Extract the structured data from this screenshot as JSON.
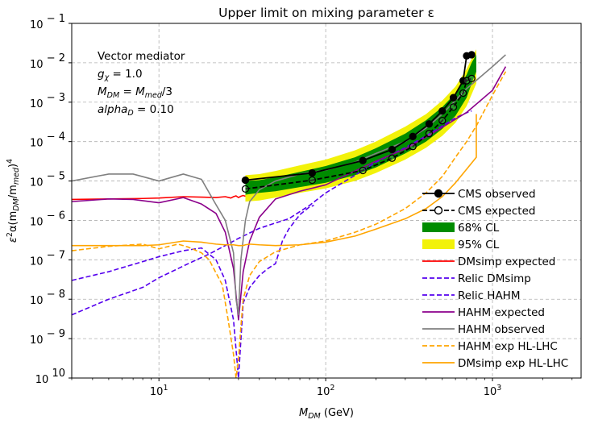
{
  "chart_data": {
    "type": "line",
    "title": "Upper limit on mixing parameter ε",
    "xlabel_parts": [
      "M",
      "DM",
      " (GeV)"
    ],
    "ylabel_parts": [
      "ε",
      "2",
      "α(m",
      "DM",
      "/m",
      "med",
      ")",
      "4"
    ],
    "xscale": "log",
    "yscale": "log",
    "xlim": [
      3,
      3400
    ],
    "ylim": [
      1e-10,
      0.1
    ],
    "grid": true,
    "legend_placement": "lower-right",
    "x_ticks": [
      {
        "value": 10,
        "base": "10",
        "exp": "1"
      },
      {
        "value": 100,
        "base": "10",
        "exp": "2"
      },
      {
        "value": 1000,
        "base": "10",
        "exp": "3"
      }
    ],
    "y_ticks": [
      {
        "value": 0.1,
        "base": "10",
        "exp": "− 1"
      },
      {
        "value": 0.01,
        "base": "10",
        "exp": "− 2"
      },
      {
        "value": 0.001,
        "base": "10",
        "exp": "− 3"
      },
      {
        "value": 0.0001,
        "base": "10",
        "exp": "− 4"
      },
      {
        "value": 1e-05,
        "base": "10",
        "exp": "− 5"
      },
      {
        "value": 1e-06,
        "base": "10",
        "exp": "− 6"
      },
      {
        "value": 1e-07,
        "base": "10",
        "exp": "− 7"
      },
      {
        "value": 1e-08,
        "base": "10",
        "exp": "− 8"
      },
      {
        "value": 1e-09,
        "base": "10",
        "exp": "− 9"
      },
      {
        "value": 1e-10,
        "base": "10",
        "exp": "10"
      }
    ],
    "annotation_lines": [
      [
        {
          "t": "Vector mediator",
          "s": "n"
        }
      ],
      [
        {
          "t": "g",
          "s": "i"
        },
        {
          "t": "χ",
          "s": "sub"
        },
        {
          "t": " = 1.0",
          "s": "n"
        }
      ],
      [
        {
          "t": "M",
          "s": "i"
        },
        {
          "t": "DM",
          "s": "sub"
        },
        {
          "t": " = ",
          "s": "n"
        },
        {
          "t": "M",
          "s": "i"
        },
        {
          "t": "med",
          "s": "sub"
        },
        {
          "t": "/3",
          "s": "n"
        }
      ],
      [
        {
          "t": "alpha",
          "s": "i"
        },
        {
          "t": "D",
          "s": "sub"
        },
        {
          "t": " = 0.10",
          "s": "n"
        }
      ]
    ],
    "bands": [
      {
        "name": "95% CL",
        "color": "#f2f20a",
        "x": [
          33,
          40,
          50,
          70,
          100,
          150,
          200,
          300,
          400,
          500,
          600,
          700,
          800
        ],
        "lower": [
          3e-06,
          3.2e-06,
          3.8e-06,
          5e-06,
          6.5e-06,
          1e-05,
          1.6e-05,
          3.5e-05,
          7e-05,
          0.00014,
          0.0003,
          0.0008,
          0.003
        ],
        "upper": [
          1.4e-05,
          1.5e-05,
          1.8e-05,
          2.5e-05,
          3.5e-05,
          6e-05,
          0.0001,
          0.00024,
          0.0005,
          0.0011,
          0.0025,
          0.007,
          0.022
        ]
      },
      {
        "name": "68% CL",
        "color": "#008c00",
        "x": [
          33,
          40,
          50,
          70,
          100,
          150,
          200,
          300,
          400,
          500,
          600,
          700,
          750,
          800
        ],
        "lower": [
          4.5e-06,
          5e-06,
          5.5e-06,
          7e-06,
          9e-06,
          1.4e-05,
          2.2e-05,
          5e-05,
          0.0001,
          0.00021,
          0.00045,
          0.0013,
          0.003,
          0.006
        ],
        "upper": [
          1e-05,
          1.05e-05,
          1.25e-05,
          1.7e-05,
          2.4e-05,
          4e-05,
          6.8e-05,
          0.00016,
          0.00035,
          0.00075,
          0.0017,
          0.005,
          0.01,
          0.016
        ]
      }
    ],
    "series": [
      {
        "name": "CMS observed",
        "color": "#000000",
        "dash": "solid",
        "marker": "filled",
        "x": [
          33,
          83,
          167,
          250,
          333,
          417,
          500,
          583,
          667,
          700,
          750
        ],
        "y": [
          1.05e-05,
          1.6e-05,
          3.3e-05,
          6.3e-05,
          0.000135,
          0.00028,
          0.0006,
          0.0013,
          0.0035,
          0.015,
          0.016
        ]
      },
      {
        "name": "CMS expected",
        "color": "#000000",
        "dash": "dashed",
        "marker": "open",
        "x": [
          33,
          83,
          167,
          250,
          333,
          417,
          500,
          583,
          667,
          700,
          750
        ],
        "y": [
          6.3e-06,
          1.05e-05,
          1.85e-05,
          3.8e-05,
          7.5e-05,
          0.00016,
          0.00034,
          0.00075,
          0.0017,
          0.0035,
          0.004
        ]
      },
      {
        "name": "DMsimp expected",
        "color": "#ff0000",
        "dash": "solid",
        "marker": "none",
        "x": [
          3,
          5,
          8,
          10,
          14,
          18,
          22,
          25,
          27,
          28,
          29,
          30,
          31,
          32,
          33
        ],
        "y": [
          3.4e-06,
          3.5e-06,
          3.6e-06,
          3.7e-06,
          4e-06,
          3.9e-06,
          3.8e-06,
          4e-06,
          3.7e-06,
          4e-06,
          4.2e-06,
          3.8e-06,
          4.1e-06,
          4.3e-06,
          4.1e-06
        ]
      },
      {
        "name": "Relic DMsimp",
        "color": "#5500ee",
        "dash": "dashed",
        "marker": "none",
        "x": [
          3,
          5,
          8,
          10,
          14,
          18,
          22,
          25,
          28,
          30,
          32,
          35,
          40,
          45,
          50,
          55,
          60,
          70,
          80,
          85
        ],
        "y": [
          3e-08,
          5e-08,
          9e-08,
          1.2e-07,
          1.7e-07,
          2e-07,
          1e-07,
          3e-08,
          3e-09,
          1e-10,
          8e-09,
          2e-08,
          4e-08,
          6e-08,
          8e-08,
          3e-07,
          6e-07,
          1.4e-06,
          2.2e-06,
          2.4e-06
        ]
      },
      {
        "name": "Relic HAHM",
        "color": "#5500ee",
        "dash": "dashed",
        "marker": "none",
        "x": [
          3,
          5,
          8,
          10,
          15,
          20,
          25,
          30,
          40,
          50,
          60,
          80,
          100,
          150,
          200,
          300,
          400,
          500,
          600,
          700,
          750
        ],
        "y": [
          4e-09,
          1e-08,
          2e-08,
          3.5e-08,
          8e-08,
          1.4e-07,
          2.3e-07,
          3.5e-07,
          6.3e-07,
          8.6e-07,
          1.1e-06,
          2.4e-06,
          5e-06,
          1.4e-05,
          3e-05,
          7e-05,
          0.00014,
          0.00025,
          0.0004,
          0.00054,
          0.0006
        ]
      },
      {
        "name": "HAHM expected",
        "color": "#8b008b",
        "dash": "solid",
        "marker": "none",
        "x": [
          3,
          5,
          7,
          10,
          14,
          18,
          22,
          25,
          28,
          30,
          32,
          35,
          40,
          50,
          70,
          100,
          150,
          200,
          300,
          400,
          500,
          700,
          1000,
          1200
        ],
        "y": [
          3e-06,
          3.5e-06,
          3.4e-06,
          2.8e-06,
          3.8e-06,
          2.6e-06,
          1.5e-06,
          5e-07,
          6e-08,
          3e-09,
          5e-08,
          3e-07,
          1.2e-06,
          3.5e-06,
          5.5e-06,
          8e-06,
          1.8e-05,
          3.2e-05,
          6.5e-05,
          0.00013,
          0.00023,
          0.00055,
          0.002,
          0.008
        ]
      },
      {
        "name": "HAHM observed",
        "color": "#808080",
        "dash": "solid",
        "marker": "none",
        "x": [
          3,
          5,
          7,
          10,
          14,
          18,
          22,
          25,
          28,
          29,
          30,
          31,
          33,
          35,
          40,
          50,
          70,
          100,
          150,
          200,
          300,
          400,
          500,
          700,
          1000,
          1200
        ],
        "y": [
          1e-05,
          1.5e-05,
          1.5e-05,
          1e-05,
          1.5e-05,
          1.1e-05,
          2.5e-06,
          1e-06,
          1.5e-07,
          1e-08,
          4e-09,
          1e-07,
          1e-06,
          3e-06,
          6e-06,
          1e-05,
          1.5e-05,
          1.9e-05,
          3e-05,
          5e-05,
          0.0001,
          0.00022,
          0.0005,
          0.0022,
          0.008,
          0.016
        ]
      },
      {
        "name": "HAHM exp HL-LHC",
        "color": "#ffa500",
        "dash": "dashed",
        "marker": "none",
        "x": [
          3,
          5,
          8,
          10,
          13,
          15,
          18,
          20,
          24,
          26,
          28,
          29,
          30,
          31,
          32,
          35,
          40,
          50,
          70,
          100,
          150,
          200,
          300,
          400,
          500,
          600,
          700,
          800,
          1000,
          1200
        ],
        "y": [
          1.7e-07,
          2.2e-07,
          2.5e-07,
          1.9e-07,
          2.5e-07,
          2.1e-07,
          1.5e-07,
          1e-07,
          2.3e-08,
          3e-09,
          4e-10,
          1e-10,
          3e-10,
          2e-09,
          1e-08,
          4e-08,
          9e-08,
          1.6e-07,
          2.4e-07,
          3e-07,
          5e-07,
          8e-07,
          2e-06,
          5e-06,
          1.3e-05,
          4e-05,
          0.0001,
          0.00025,
          0.0015,
          0.006
        ]
      },
      {
        "name": "DMsimp exp HL-LHC",
        "color": "#ffa500",
        "dash": "solid",
        "marker": "none",
        "x": [
          3,
          5,
          8,
          10,
          14,
          18,
          22,
          25,
          28,
          30,
          32,
          33,
          35,
          40,
          50,
          70,
          100,
          150,
          200,
          300,
          400,
          500,
          600,
          700,
          800,
          800
        ],
        "y": [
          2.3e-07,
          2.3e-07,
          2.3e-07,
          2.4e-07,
          3e-07,
          2.8e-07,
          2.5e-07,
          2.4e-07,
          2.4e-07,
          2.3e-07,
          2.3e-07,
          2.4e-07,
          2.5e-07,
          2.4e-07,
          2.3e-07,
          2.4e-07,
          2.8e-07,
          4e-07,
          6e-07,
          1.1e-06,
          2e-06,
          4e-06,
          9e-06,
          2e-05,
          4e-05,
          0.0005
        ]
      }
    ],
    "legend_entries": [
      {
        "label": "CMS observed",
        "kind": "line",
        "color": "#000000",
        "dash": "solid",
        "marker": "filled"
      },
      {
        "label": "CMS expected",
        "kind": "line",
        "color": "#000000",
        "dash": "dashed",
        "marker": "open"
      },
      {
        "label": "68% CL",
        "kind": "patch",
        "color": "#008c00"
      },
      {
        "label": "95% CL",
        "kind": "patch",
        "color": "#f2f20a"
      },
      {
        "label": "DMsimp expected",
        "kind": "line",
        "color": "#ff0000",
        "dash": "solid",
        "marker": "none"
      },
      {
        "label": "Relic DMsimp",
        "kind": "line",
        "color": "#5500ee",
        "dash": "dashed",
        "marker": "none"
      },
      {
        "label": "Relic HAHM",
        "kind": "line",
        "color": "#5500ee",
        "dash": "dashed",
        "marker": "none"
      },
      {
        "label": "HAHM expected",
        "kind": "line",
        "color": "#8b008b",
        "dash": "solid",
        "marker": "none"
      },
      {
        "label": "HAHM observed",
        "kind": "line",
        "color": "#808080",
        "dash": "solid",
        "marker": "none"
      },
      {
        "label": "HAHM exp HL-LHC",
        "kind": "line",
        "color": "#ffa500",
        "dash": "dashed",
        "marker": "none"
      },
      {
        "label": "DMsimp exp HL-LHC",
        "kind": "line",
        "color": "#ffa500",
        "dash": "solid",
        "marker": "none"
      }
    ]
  }
}
